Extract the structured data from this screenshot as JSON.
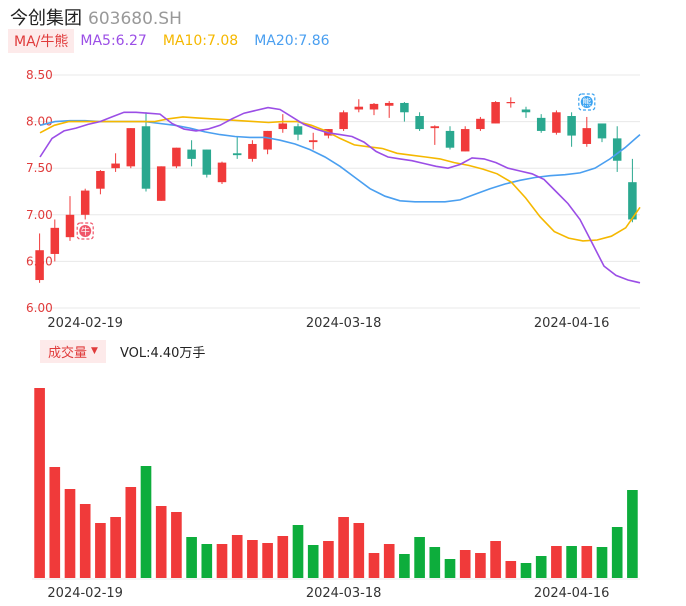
{
  "header": {
    "name": "今创集团",
    "code": "603680.SH"
  },
  "legend": {
    "tag": "MA/牛熊",
    "items": [
      {
        "label": "MA5:6.27",
        "color": "#9b4ee6"
      },
      {
        "label": "MA10:7.08",
        "color": "#f5b800"
      },
      {
        "label": "MA20:7.86",
        "color": "#4a9ff0"
      }
    ]
  },
  "volume_legend": {
    "tag": "成交量",
    "value": "VOL:4.40万手"
  },
  "colors": {
    "up": "#f03a3a",
    "down": "#0dad3c",
    "down_candle": "#2aa88f",
    "grid": "#e8e8e8",
    "axis_label": "#e03b3b"
  },
  "markers": [
    {
      "label": "牛",
      "index": 3,
      "kind": "bull",
      "color": "#f0566a"
    },
    {
      "label": "熊",
      "index": 36,
      "kind": "bear",
      "color": "#3aa2f0"
    }
  ],
  "chart_data": {
    "type": "candlestick",
    "y_ticks": [
      "8.50",
      "8.00",
      "7.50",
      "7.00",
      "6.50",
      "6.00"
    ],
    "ylim": [
      6.0,
      8.5
    ],
    "x_ticks": [
      {
        "index": 3,
        "label": "2024-02-19"
      },
      {
        "index": 20,
        "label": "2024-03-18"
      },
      {
        "index": 35,
        "label": "2024-04-16"
      }
    ],
    "candles": [
      {
        "o": 6.3,
        "c": 6.62,
        "h": 6.8,
        "l": 6.27
      },
      {
        "o": 6.58,
        "c": 6.86,
        "h": 6.95,
        "l": 6.5
      },
      {
        "o": 6.76,
        "c": 7.0,
        "h": 7.2,
        "l": 6.72
      },
      {
        "o": 7.0,
        "c": 7.26,
        "h": 7.28,
        "l": 6.95
      },
      {
        "o": 7.28,
        "c": 7.47,
        "h": 7.48,
        "l": 7.22
      },
      {
        "o": 7.5,
        "c": 7.55,
        "h": 7.66,
        "l": 7.46
      },
      {
        "o": 7.52,
        "c": 7.93,
        "h": 7.93,
        "l": 7.5
      },
      {
        "o": 7.95,
        "c": 7.28,
        "h": 8.1,
        "l": 7.25
      },
      {
        "o": 7.15,
        "c": 7.52,
        "h": 7.52,
        "l": 7.15
      },
      {
        "o": 7.52,
        "c": 7.72,
        "h": 7.72,
        "l": 7.5
      },
      {
        "o": 7.7,
        "c": 7.6,
        "h": 7.8,
        "l": 7.52
      },
      {
        "o": 7.7,
        "c": 7.43,
        "h": 7.7,
        "l": 7.4
      },
      {
        "o": 7.35,
        "c": 7.56,
        "h": 7.57,
        "l": 7.33
      },
      {
        "o": 7.66,
        "c": 7.64,
        "h": 7.84,
        "l": 7.6
      },
      {
        "o": 7.6,
        "c": 7.76,
        "h": 7.8,
        "l": 7.57
      },
      {
        "o": 7.7,
        "c": 7.9,
        "h": 7.9,
        "l": 7.65
      },
      {
        "o": 7.92,
        "c": 7.98,
        "h": 8.08,
        "l": 7.88
      },
      {
        "o": 7.95,
        "c": 7.86,
        "h": 7.98,
        "l": 7.8
      },
      {
        "o": 7.78,
        "c": 7.8,
        "h": 7.88,
        "l": 7.7
      },
      {
        "o": 7.85,
        "c": 7.92,
        "h": 7.92,
        "l": 7.82
      },
      {
        "o": 7.92,
        "c": 8.1,
        "h": 8.12,
        "l": 7.9
      },
      {
        "o": 8.13,
        "c": 8.16,
        "h": 8.24,
        "l": 8.1
      },
      {
        "o": 8.13,
        "c": 8.19,
        "h": 8.2,
        "l": 8.07
      },
      {
        "o": 8.17,
        "c": 8.2,
        "h": 8.22,
        "l": 8.04
      },
      {
        "o": 8.2,
        "c": 8.1,
        "h": 8.21,
        "l": 8.0
      },
      {
        "o": 8.06,
        "c": 7.92,
        "h": 8.1,
        "l": 7.9
      },
      {
        "o": 7.93,
        "c": 7.95,
        "h": 7.96,
        "l": 7.75
      },
      {
        "o": 7.9,
        "c": 7.72,
        "h": 7.95,
        "l": 7.7
      },
      {
        "o": 7.68,
        "c": 7.92,
        "h": 7.95,
        "l": 7.68
      },
      {
        "o": 7.92,
        "c": 8.03,
        "h": 8.05,
        "l": 7.9
      },
      {
        "o": 7.98,
        "c": 8.21,
        "h": 8.22,
        "l": 7.98
      },
      {
        "o": 8.2,
        "c": 8.21,
        "h": 8.26,
        "l": 8.15
      },
      {
        "o": 8.13,
        "c": 8.1,
        "h": 8.16,
        "l": 8.04
      },
      {
        "o": 8.04,
        "c": 7.9,
        "h": 8.08,
        "l": 7.88
      },
      {
        "o": 7.88,
        "c": 8.1,
        "h": 8.12,
        "l": 7.86
      },
      {
        "o": 8.06,
        "c": 7.85,
        "h": 8.1,
        "l": 7.73
      },
      {
        "o": 7.76,
        "c": 7.93,
        "h": 8.05,
        "l": 7.73
      },
      {
        "o": 7.98,
        "c": 7.82,
        "h": 7.98,
        "l": 7.78
      },
      {
        "o": 7.82,
        "c": 7.58,
        "h": 7.95,
        "l": 7.46
      },
      {
        "o": 7.35,
        "c": 6.95,
        "h": 7.6,
        "l": 6.92
      }
    ],
    "volume": [
      {
        "v": 190,
        "up": true
      },
      {
        "v": 111,
        "up": true
      },
      {
        "v": 89,
        "up": true
      },
      {
        "v": 74,
        "up": true
      },
      {
        "v": 55,
        "up": true
      },
      {
        "v": 61,
        "up": true
      },
      {
        "v": 91,
        "up": true
      },
      {
        "v": 112,
        "up": false
      },
      {
        "v": 72,
        "up": true
      },
      {
        "v": 66,
        "up": true
      },
      {
        "v": 41,
        "up": false
      },
      {
        "v": 34,
        "up": false
      },
      {
        "v": 34,
        "up": true
      },
      {
        "v": 43,
        "up": true
      },
      {
        "v": 38,
        "up": true
      },
      {
        "v": 35,
        "up": true
      },
      {
        "v": 42,
        "up": true
      },
      {
        "v": 53,
        "up": false
      },
      {
        "v": 33,
        "up": false
      },
      {
        "v": 37,
        "up": true
      },
      {
        "v": 61,
        "up": true
      },
      {
        "v": 55,
        "up": true
      },
      {
        "v": 25,
        "up": true
      },
      {
        "v": 34,
        "up": true
      },
      {
        "v": 24,
        "up": false
      },
      {
        "v": 41,
        "up": false
      },
      {
        "v": 31,
        "up": false
      },
      {
        "v": 19,
        "up": false
      },
      {
        "v": 28,
        "up": true
      },
      {
        "v": 25,
        "up": true
      },
      {
        "v": 37,
        "up": true
      },
      {
        "v": 17,
        "up": true
      },
      {
        "v": 15,
        "up": false
      },
      {
        "v": 22,
        "up": false
      },
      {
        "v": 32,
        "up": true
      },
      {
        "v": 32,
        "up": false
      },
      {
        "v": 32,
        "up": true
      },
      {
        "v": 31,
        "up": false
      },
      {
        "v": 51,
        "up": false
      },
      {
        "v": 88,
        "up": false
      }
    ],
    "ma5": [
      7.62,
      7.82,
      7.9,
      7.93,
      7.97,
      8.0,
      8.05,
      8.1,
      8.1,
      8.09,
      8.08,
      7.98,
      7.92,
      7.9,
      7.92,
      7.96,
      8.03,
      8.09,
      8.12,
      8.15,
      8.13,
      8.05,
      7.97,
      7.92,
      7.88,
      7.86,
      7.84,
      7.78,
      7.68,
      7.62,
      7.6,
      7.58,
      7.55,
      7.52,
      7.5,
      7.54,
      7.61,
      7.6,
      7.56,
      7.5,
      7.47,
      7.44,
      7.38,
      7.25,
      7.12,
      6.95,
      6.7,
      6.45,
      6.35,
      6.3,
      6.27
    ],
    "ma10": [
      7.88,
      7.96,
      8.0,
      8.0,
      8.0,
      8.0,
      8.0,
      8.0,
      8.0,
      8.03,
      8.05,
      8.04,
      8.03,
      8.02,
      8.01,
      8.0,
      7.99,
      8.0,
      8.0,
      7.96,
      7.9,
      7.82,
      7.75,
      7.73,
      7.71,
      7.66,
      7.64,
      7.62,
      7.6,
      7.56,
      7.53,
      7.49,
      7.44,
      7.35,
      7.18,
      6.98,
      6.82,
      6.75,
      6.72,
      6.73,
      6.77,
      6.86,
      7.08
    ],
    "ma20": [
      7.96,
      8.0,
      8.01,
      8.01,
      8.0,
      8.0,
      8.0,
      8.0,
      7.98,
      7.96,
      7.93,
      7.89,
      7.86,
      7.84,
      7.83,
      7.83,
      7.8,
      7.76,
      7.7,
      7.62,
      7.52,
      7.4,
      7.28,
      7.2,
      7.15,
      7.14,
      7.14,
      7.14,
      7.16,
      7.22,
      7.28,
      7.33,
      7.37,
      7.4,
      7.42,
      7.43,
      7.45,
      7.5,
      7.6,
      7.72,
      7.86
    ]
  }
}
